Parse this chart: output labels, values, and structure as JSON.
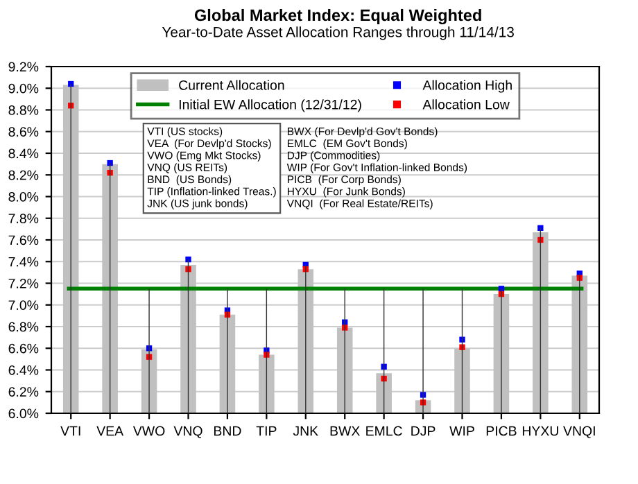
{
  "chart_data": {
    "type": "bar",
    "title": "Global Market Index: Equal Weighted",
    "subtitle": "Year-to-Date Asset Allocation Ranges through 11/14/13",
    "categories": [
      "VTI",
      "VEA",
      "VWO",
      "VNQ",
      "BND",
      "TIP",
      "JNK",
      "BWX",
      "EMLC",
      "DJP",
      "WIP",
      "PICB",
      "HYXU",
      "VNQI"
    ],
    "series": [
      {
        "name": "Current Allocation",
        "color": "#c0c0c0",
        "values": [
          9.03,
          8.3,
          6.59,
          7.37,
          6.91,
          6.54,
          7.33,
          6.79,
          6.37,
          6.12,
          6.6,
          7.1,
          7.67,
          7.27
        ]
      },
      {
        "name": "Allocation High",
        "type": "scatter",
        "color": "#0000ff",
        "values": [
          9.04,
          8.31,
          6.6,
          7.42,
          6.95,
          6.58,
          7.37,
          6.84,
          6.43,
          6.17,
          6.68,
          7.15,
          7.71,
          7.29
        ]
      },
      {
        "type": "bar",
        "color": "#333333",
        "values": [
          9.04,
          8.31,
          7.15,
          7.42,
          7.15,
          7.15,
          7.37,
          7.15,
          7.15,
          7.15,
          7.15,
          7.15,
          7.71,
          7.29
        ]
      },
      {
        "name": "Allocation Low",
        "type": "scatter",
        "color": "#ff0000",
        "values": [
          8.84,
          8.22,
          6.52,
          7.33,
          6.91,
          6.54,
          7.33,
          6.79,
          6.32,
          6.1,
          6.61,
          7.1,
          7.6,
          7.25
        ]
      }
    ],
    "ref_lines": [
      {
        "axis": "y",
        "value": 7.15,
        "label": "Initial EW Allocation (12/31/12)",
        "color": "#008000"
      }
    ],
    "ylim": [
      6.0,
      9.2
    ],
    "yticks": [
      {
        "value": 6.0,
        "label": "6.0%"
      },
      {
        "value": 6.2,
        "label": "6.2%"
      },
      {
        "value": 6.4,
        "label": "6.4%"
      },
      {
        "value": 6.6,
        "label": "6.6%"
      },
      {
        "value": 6.8,
        "label": "6.8%"
      },
      {
        "value": 7.0,
        "label": "7.0%"
      },
      {
        "value": 7.2,
        "label": "7.2%"
      },
      {
        "value": 7.4,
        "label": "7.4%"
      },
      {
        "value": 7.6,
        "label": "7.6%"
      },
      {
        "value": 7.8,
        "label": "7.8%"
      },
      {
        "value": 8.0,
        "label": "8.0%"
      },
      {
        "value": 8.2,
        "label": "8.2%"
      },
      {
        "value": 8.4,
        "label": "8.4%"
      },
      {
        "value": 8.6,
        "label": "8.6%"
      },
      {
        "value": 8.8,
        "label": "8.8%"
      },
      {
        "value": 9.0,
        "label": "9.0%"
      },
      {
        "value": 9.2,
        "label": "9.2%"
      }
    ],
    "grid": "y",
    "legend": "top",
    "marker": "square",
    "annotations": [
      "VTI (US stocks)",
      "VEA  (For Devlp'd Stocks)",
      "VWO (Emg Mkt Stocks)",
      "VNQ (US REITs)",
      "BND  (US Bonds)",
      "TIP (Inflation-linked Treas.)",
      "JNK (US junk bonds)",
      "BWX (For Devlp'd Gov't Bonds)",
      "EMLC  (EM Gov't Bonds)",
      "DJP (Commodities)",
      "WIP (For Gov't Inflation-linked Bonds)",
      "PICB  (For Corp Bonds)",
      "HYXU  (For Junk Bonds)",
      "VNQI  (For Real Estate/REITs)"
    ]
  }
}
